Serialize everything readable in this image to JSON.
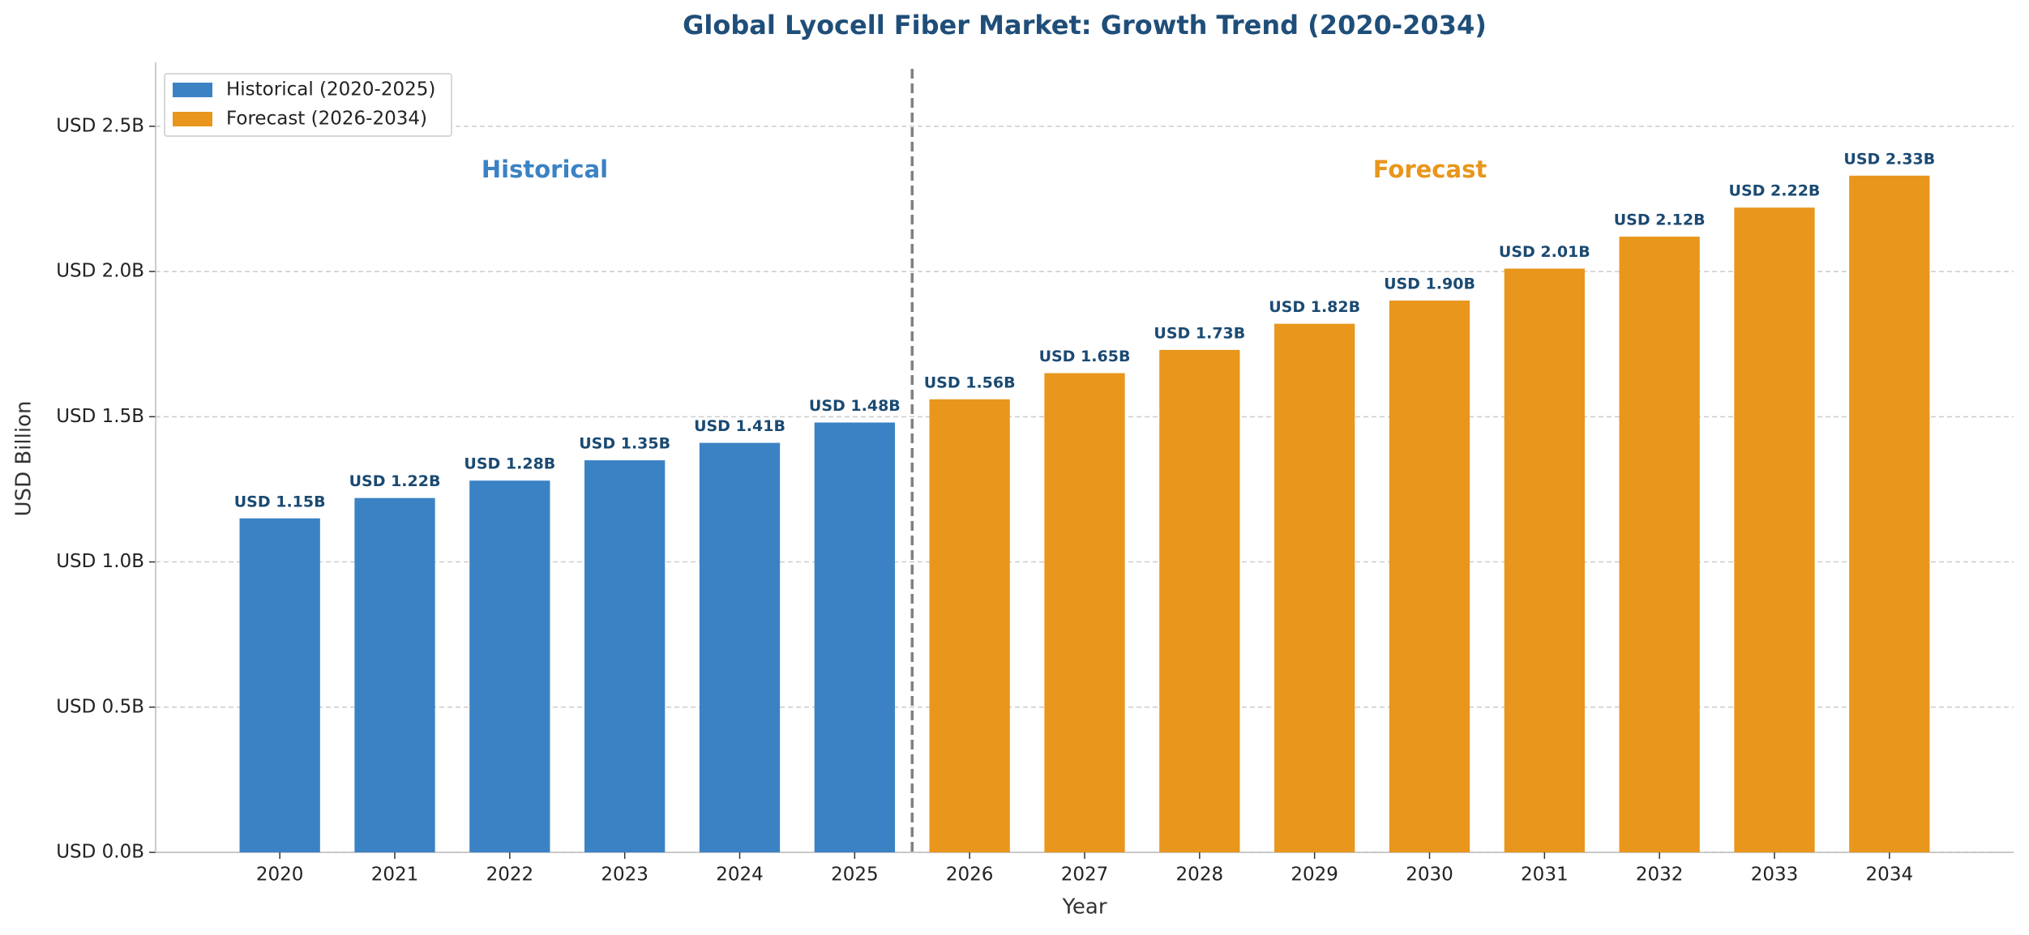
{
  "chart_data": {
    "type": "bar",
    "title": "Global Lyocell Fiber Market: Growth Trend (2020-2034)",
    "x_label": "Year",
    "y_label": "USD Billion",
    "categories": [
      "2020",
      "2021",
      "2022",
      "2023",
      "2024",
      "2025",
      "2026",
      "2027",
      "2028",
      "2029",
      "2030",
      "2031",
      "2032",
      "2033",
      "2034"
    ],
    "series": [
      {
        "name": "Historical (2020-2025)",
        "color": "#3b82c4",
        "values": [
          1.15,
          1.22,
          1.28,
          1.35,
          1.41,
          1.48,
          null,
          null,
          null,
          null,
          null,
          null,
          null,
          null,
          null
        ],
        "value_labels": [
          "USD 1.15B",
          "USD 1.22B",
          "USD 1.28B",
          "USD 1.35B",
          "USD 1.41B",
          "USD 1.48B",
          null,
          null,
          null,
          null,
          null,
          null,
          null,
          null,
          null
        ]
      },
      {
        "name": "Forecast (2026-2034)",
        "color": "#e8961c",
        "values": [
          null,
          null,
          null,
          null,
          null,
          null,
          1.56,
          1.65,
          1.73,
          1.82,
          1.9,
          2.01,
          2.12,
          2.22,
          2.33
        ],
        "value_labels": [
          null,
          null,
          null,
          null,
          null,
          null,
          "USD 1.56B",
          "USD 1.65B",
          "USD 1.73B",
          "USD 1.82B",
          "USD 1.90B",
          "USD 2.01B",
          "USD 2.12B",
          "USD 2.22B",
          "USD 2.33B"
        ]
      }
    ],
    "annotations": [
      "Historical",
      "Forecast"
    ],
    "ylim": [
      0,
      2.72
    ],
    "yticks": [
      {
        "value": 0,
        "label": "USD 0.0B"
      },
      {
        "value": 0.5,
        "label": "USD 0.5B"
      },
      {
        "value": 1,
        "label": "USD 1.0B"
      },
      {
        "value": 1.5,
        "label": "USD 1.5B"
      },
      {
        "value": 2,
        "label": "USD 2.0B"
      },
      {
        "value": 2.5,
        "label": "USD 2.5B"
      }
    ],
    "grid": true,
    "legend": "upper left"
  }
}
